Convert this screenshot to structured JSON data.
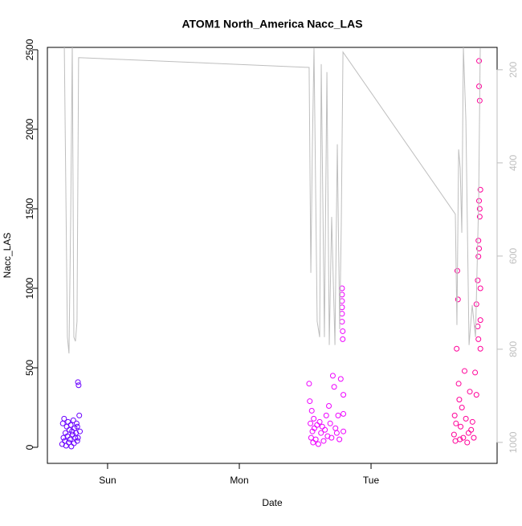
{
  "chart_data": {
    "type": "scatter",
    "title": "ATOM1 North_America Nacc_LAS",
    "x_label": "Date",
    "y_label": "Nacc_LAS",
    "xlim": [
      -0.457,
      2.957
    ],
    "xticks": [
      {
        "value": 0,
        "label": "Sun"
      },
      {
        "value": 1,
        "label": "Mon"
      },
      {
        "value": 2,
        "label": "Tue"
      }
    ],
    "ylim": [
      -101,
      2515
    ],
    "yticks": [
      0,
      500,
      1000,
      1500,
      2000,
      2500
    ],
    "y2lim": [
      1045,
      152
    ],
    "y2ticks": [
      200,
      400,
      600,
      800,
      1000
    ],
    "series": [
      {
        "color": "#6A00FF",
        "x": [
          -0.345,
          -0.34,
          -0.335,
          -0.33,
          -0.325,
          -0.32,
          -0.315,
          -0.31,
          -0.305,
          -0.3,
          -0.295,
          -0.29,
          -0.285,
          -0.28,
          -0.275,
          -0.27,
          -0.265,
          -0.26,
          -0.255,
          -0.25,
          -0.245,
          -0.24,
          -0.235,
          -0.23,
          -0.225,
          -0.22,
          -0.215,
          -0.21,
          -0.23,
          -0.225
        ],
        "values": [
          20,
          150,
          60,
          180,
          40,
          90,
          10,
          130,
          70,
          160,
          30,
          110,
          50,
          140,
          5,
          100,
          80,
          170,
          25,
          120,
          60,
          90,
          150,
          40,
          410,
          390,
          200,
          100,
          130,
          60
        ]
      },
      {
        "color": "#EE00FF",
        "x": [
          1.53,
          1.535,
          1.54,
          1.545,
          1.55,
          1.555,
          1.56,
          1.565,
          1.57,
          1.58,
          1.59,
          1.6,
          1.61,
          1.62,
          1.63,
          1.64,
          1.65,
          1.66,
          1.67,
          1.68,
          1.69,
          1.7,
          1.71,
          1.72,
          1.73,
          1.74,
          1.75,
          1.76,
          1.77,
          1.78,
          1.78,
          1.78,
          1.78,
          1.78,
          1.78,
          1.785,
          1.785,
          1.79,
          1.79,
          1.79
        ],
        "values": [
          400,
          290,
          150,
          60,
          230,
          100,
          30,
          180,
          120,
          50,
          140,
          20,
          160,
          90,
          130,
          40,
          110,
          200,
          70,
          260,
          150,
          60,
          450,
          380,
          120,
          90,
          200,
          50,
          430,
          1000,
          960,
          920,
          880,
          840,
          790,
          730,
          680,
          330,
          210,
          100
        ]
      },
      {
        "color": "#FF0099",
        "x": [
          2.63,
          2.635,
          2.64,
          2.645,
          2.65,
          2.655,
          2.66,
          2.665,
          2.67,
          2.675,
          2.68,
          2.69,
          2.7,
          2.71,
          2.72,
          2.73,
          2.74,
          2.75,
          2.76,
          2.77,
          2.78,
          2.79,
          2.8,
          2.8,
          2.81,
          2.81,
          2.815,
          2.815,
          2.815,
          2.82,
          2.82,
          2.82,
          2.82,
          2.825,
          2.825,
          2.825,
          2.83,
          2.83,
          2.83,
          2.83
        ],
        "values": [
          80,
          200,
          40,
          150,
          620,
          1110,
          930,
          400,
          300,
          50,
          130,
          250,
          60,
          480,
          180,
          30,
          90,
          350,
          110,
          160,
          60,
          470,
          330,
          900,
          1050,
          760,
          1300,
          1200,
          680,
          1550,
          1250,
          2270,
          2430,
          2180,
          1450,
          1500,
          1620,
          1000,
          800,
          620
        ]
      },
      {
        "type": "line",
        "axis": "y2",
        "color": "#BEBEBE",
        "x": [
          -0.329,
          -0.305,
          -0.293,
          -0.28,
          -0.268,
          -0.256,
          -0.244,
          -0.232,
          -0.22,
          1.53,
          1.543,
          1.555,
          1.567,
          1.591,
          1.61,
          1.622,
          1.646,
          1.665,
          1.683,
          1.701,
          1.726,
          1.744,
          1.762,
          1.774,
          1.787,
          2.64,
          2.652,
          2.665,
          2.677,
          2.689,
          2.701,
          2.72,
          2.744,
          2.768,
          2.793,
          2.817,
          2.829
        ],
        "values": [
          136,
          774,
          809,
          516,
          145,
          774,
          783,
          740,
          174,
          195,
          636,
          360,
          154,
          740,
          774,
          188,
          774,
          205,
          791,
          516,
          791,
          360,
          757,
          533,
          162,
          510,
          748,
          371,
          412,
          550,
          152,
          309,
          791,
          705,
          774,
          481,
          154
        ]
      }
    ]
  }
}
